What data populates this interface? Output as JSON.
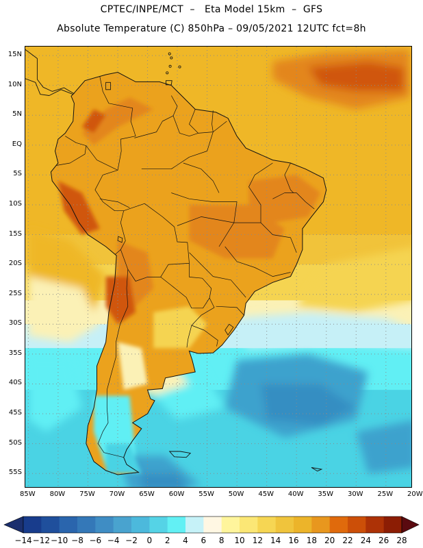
{
  "title": {
    "line1": "CPTEC/INPE/MCT  –   Eta Model 15km  –  GFS",
    "line2": "Absolute Temperature (C) 850hPa – 09/05/2021 12UTC fct=8h"
  },
  "map": {
    "lat_labels": [
      "15N",
      "10N",
      "5N",
      "EQ",
      "5S",
      "10S",
      "15S",
      "20S",
      "25S",
      "30S",
      "35S",
      "40S",
      "45S",
      "50S",
      "55S"
    ],
    "lon_labels": [
      "85W",
      "80W",
      "75W",
      "70W",
      "65W",
      "60W",
      "55W",
      "50W",
      "45W",
      "40W",
      "35W",
      "30W",
      "25W",
      "20W"
    ],
    "lat_range": [
      -57.5,
      16.5
    ],
    "lon_range": [
      -85.5,
      -20.5
    ]
  },
  "colorbar": {
    "ticks": [
      "-14",
      "-12",
      "-10",
      "-8",
      "-6",
      "-4",
      "-2",
      "0",
      "2",
      "4",
      "6",
      "8",
      "10",
      "12",
      "14",
      "16",
      "18",
      "20",
      "22",
      "24",
      "26",
      "28"
    ],
    "colors": [
      "#183c8c",
      "#1f4f9c",
      "#2a65ad",
      "#3478b8",
      "#3f8dc4",
      "#49a3cf",
      "#4cb9dc",
      "#55d3e6",
      "#62f0f4",
      "#c6f2f8",
      "#fff7e3",
      "#fff59c",
      "#fbe775",
      "#f6d653",
      "#f0c43c",
      "#ecb42a",
      "#e8971e",
      "#e06a0c",
      "#cc4f08",
      "#ad3206",
      "#8c1d04"
    ],
    "under_color": "#1b2f6e",
    "over_color": "#5a0a10"
  },
  "palette": {
    "ocean_tropical": "#efb727",
    "continent_warm": "#eba21d",
    "hot": "#e3861a",
    "very_hot": "#d0560c",
    "mild": "#f5d451",
    "cool": "#fbf1b6",
    "cold": "#c6f0f7",
    "colder": "#61eff4",
    "cyan_mid": "#4ad3e4",
    "blue_cold": "#3ea2cd",
    "blue_deep": "#358ec2"
  }
}
